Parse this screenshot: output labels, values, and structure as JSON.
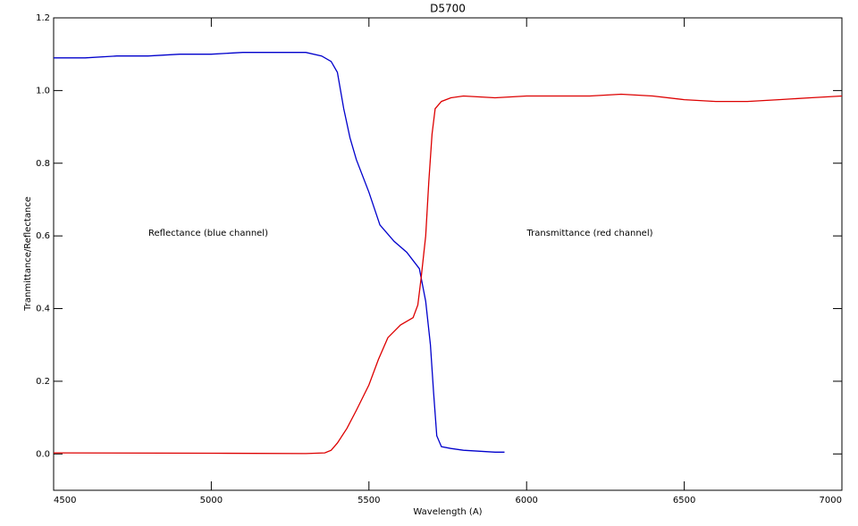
{
  "chart_data": {
    "type": "line",
    "title": "D5700",
    "x_label": "Wavelength (A)",
    "y_label": "Tranmittance/Reflectance",
    "annotations": [
      "Reflectance (blue channel)",
      "Transmittance (red channel)"
    ],
    "xlim": [
      4500,
      7000
    ],
    "xticks": [
      4500,
      5000,
      5500,
      6000,
      6500,
      7000
    ],
    "ylim": [
      -0.1,
      1.2
    ],
    "yticks": [
      {
        "value": 0,
        "label": "0.0"
      },
      0.2,
      0.4,
      0.6,
      0.8,
      {
        "value": 1,
        "label": "1.0"
      },
      1.2
    ],
    "series": [
      {
        "color": "#0000cc",
        "x": [
          4500,
          4600,
          4700,
          4800,
          4900,
          5000,
          5100,
          5200,
          5300,
          5350,
          5380,
          5400,
          5420,
          5440,
          5460,
          5500,
          5535,
          5580,
          5620,
          5660,
          5680,
          5695,
          5705,
          5715,
          5730,
          5760,
          5800,
          5900,
          5930
        ],
        "values": [
          1.09,
          1.09,
          1.095,
          1.095,
          1.1,
          1.1,
          1.105,
          1.105,
          1.105,
          1.095,
          1.08,
          1.05,
          0.95,
          0.87,
          0.81,
          0.72,
          0.63,
          0.585,
          0.555,
          0.51,
          0.42,
          0.3,
          0.17,
          0.05,
          0.02,
          0.015,
          0.01,
          0.005,
          0.005
        ]
      },
      {
        "color": "#dd0000",
        "x": [
          4500,
          5000,
          5300,
          5360,
          5380,
          5400,
          5430,
          5460,
          5500,
          5530,
          5560,
          5600,
          5640,
          5655,
          5665,
          5680,
          5690,
          5700,
          5710,
          5730,
          5760,
          5800,
          5900,
          6000,
          6200,
          6300,
          6400,
          6500,
          6600,
          6700,
          6800,
          6900,
          7000
        ],
        "values": [
          0.003,
          0.002,
          0.001,
          0.003,
          0.01,
          0.03,
          0.07,
          0.12,
          0.19,
          0.26,
          0.32,
          0.355,
          0.375,
          0.41,
          0.48,
          0.6,
          0.75,
          0.88,
          0.95,
          0.97,
          0.98,
          0.985,
          0.98,
          0.985,
          0.985,
          0.99,
          0.985,
          0.975,
          0.97,
          0.97,
          0.975,
          0.98,
          0.985
        ]
      }
    ]
  }
}
